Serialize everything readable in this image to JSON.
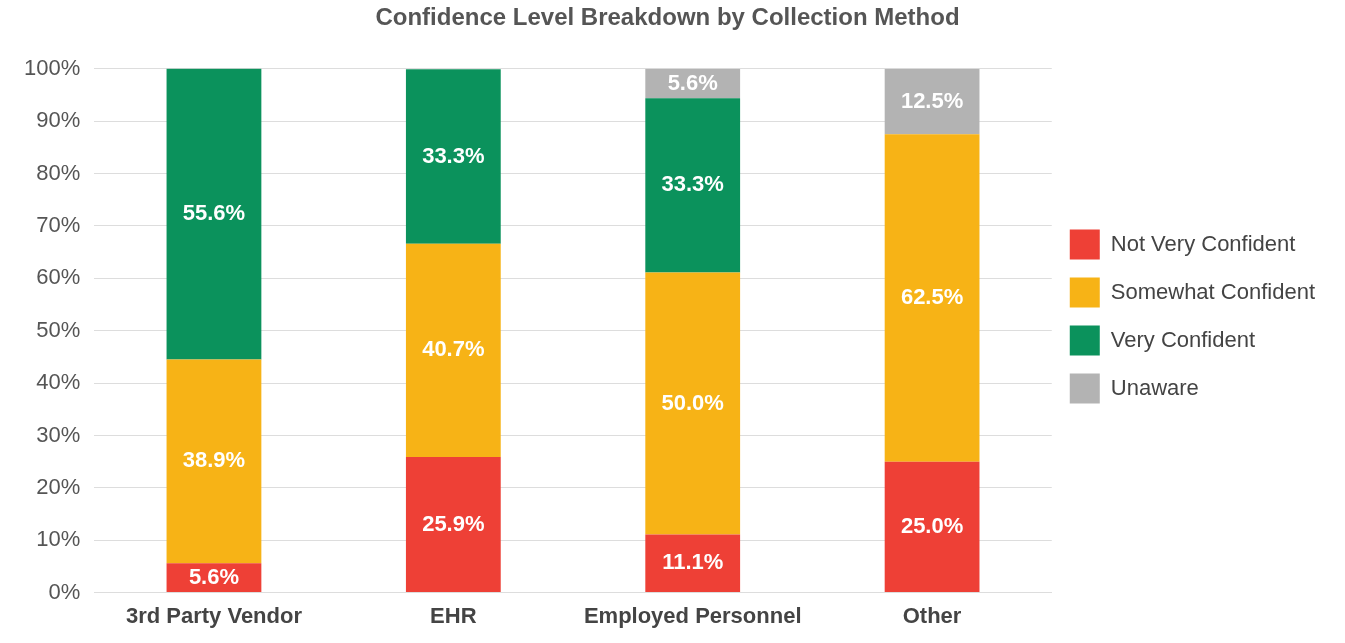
{
  "chart_data": {
    "type": "bar",
    "stacked": true,
    "title": "Confidence Level Breakdown by Collection Method",
    "categories": [
      "3rd Party Vendor",
      "EHR",
      "Employed Personnel",
      "Other"
    ],
    "series": [
      {
        "name": "Not Very Confident",
        "color": "#ee4036",
        "values": [
          5.6,
          25.9,
          11.1,
          25.0
        ],
        "value_labels": [
          "5.6%",
          "25.9%",
          "11.1%",
          "25.0%"
        ]
      },
      {
        "name": "Somewhat Confident",
        "color": "#f7b316",
        "values": [
          38.9,
          40.7,
          50.0,
          62.5
        ],
        "value_labels": [
          "38.9%",
          "40.7%",
          "50.0%",
          "62.5%"
        ]
      },
      {
        "name": "Very Confident",
        "color": "#0b925c",
        "values": [
          55.6,
          33.3,
          33.3,
          null
        ],
        "value_labels": [
          "55.6%",
          "33.3%",
          "33.3%",
          null
        ]
      },
      {
        "name": "Unaware",
        "color": "#b3b3b3",
        "values": [
          null,
          null,
          5.6,
          12.5
        ],
        "value_labels": [
          null,
          null,
          "5.6%",
          "12.5%"
        ]
      }
    ],
    "ylim": [
      0,
      100
    ],
    "yticks": [
      {
        "value": 0,
        "label": "0%"
      },
      {
        "value": 10,
        "label": "10%"
      },
      {
        "value": 20,
        "label": "20%"
      },
      {
        "value": 30,
        "label": "30%"
      },
      {
        "value": 40,
        "label": "40%"
      },
      {
        "value": 50,
        "label": "50%"
      },
      {
        "value": 60,
        "label": "60%"
      },
      {
        "value": 70,
        "label": "70%"
      },
      {
        "value": 80,
        "label": "80%"
      },
      {
        "value": 90,
        "label": "90%"
      },
      {
        "value": 100,
        "label": "100%"
      }
    ],
    "grid": "y",
    "legend": "right"
  }
}
